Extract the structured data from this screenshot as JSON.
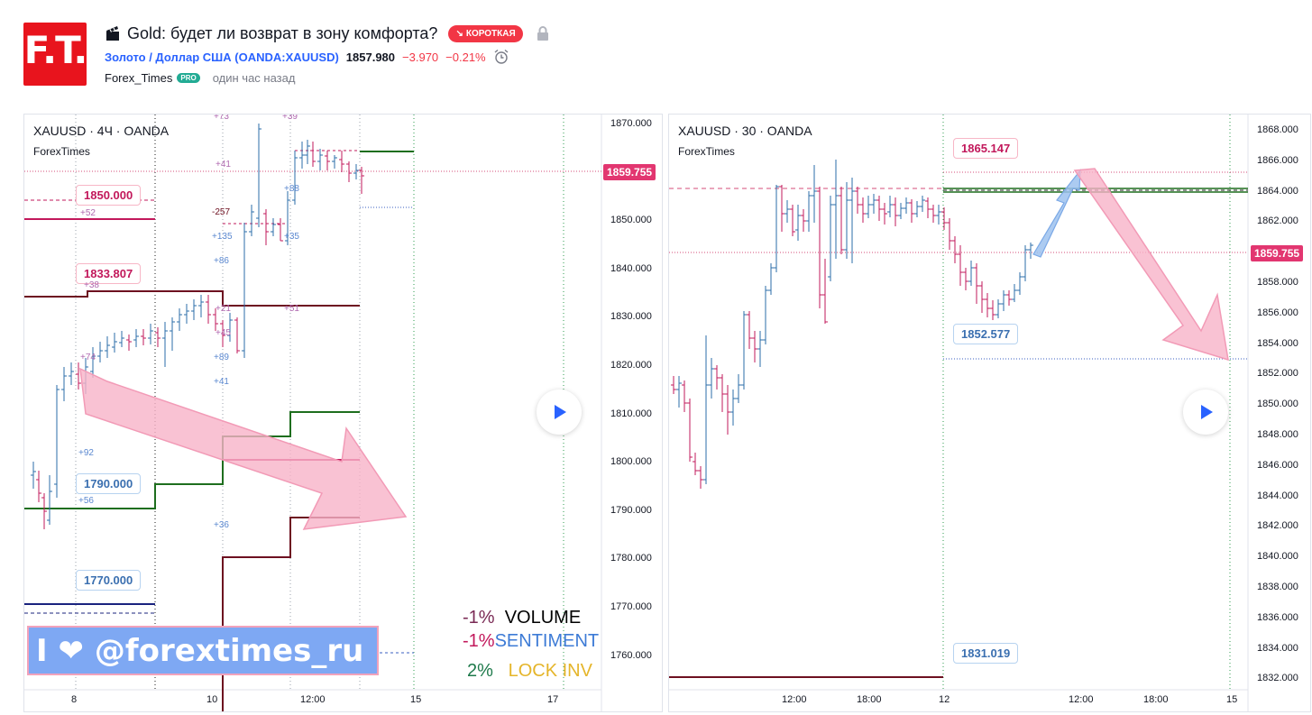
{
  "header": {
    "logo_text": "F.T.",
    "idea_title": "Gold: будет ли возврат в зону комфорта?",
    "direction_badge": "КОРОТКАЯ",
    "symbol_name": "Золото / Доллар США",
    "symbol_code": "(OANDA:XAUUSD)",
    "last_price": "1857.980",
    "change_abs": "−3.970",
    "change_pct": "−0.21%",
    "author": "Forex_Times",
    "author_badge": "PRO",
    "published": "один час назад"
  },
  "left_chart": {
    "title": "XAUUSD · 4Ч · OANDA",
    "subtitle": "ForexTimes",
    "price_axis": [
      "1870.000",
      "1860.000",
      "1850.000",
      "1840.000",
      "1830.000",
      "1820.000",
      "1810.000",
      "1800.000",
      "1790.000",
      "1780.000",
      "1770.000",
      "1760.000"
    ],
    "current_price_tag": "1859.755",
    "time_axis": [
      "8",
      "10",
      "12:00",
      "15",
      "17"
    ],
    "callouts": [
      "1850.000",
      "1833.807",
      "1790.000",
      "1770.000"
    ],
    "level_numbers": [
      "+73",
      "+39",
      "+41",
      "+88",
      "+52",
      "-257",
      "+135",
      "+35",
      "+86",
      "+38",
      "+21",
      "+51",
      "+45",
      "+74",
      "+89",
      "+41",
      "+92",
      "+56",
      "+36"
    ],
    "banner_text": "I ❤ @forextimes_ru",
    "legend": [
      {
        "pct": "-1%",
        "label": "VOLUME"
      },
      {
        "pct": "-1%",
        "label": "SENTIMENT"
      },
      {
        "pct": "2%",
        "label": "LOCK INV"
      }
    ]
  },
  "right_chart": {
    "title": "XAUUSD · 30 · OANDA",
    "subtitle": "ForexTimes",
    "price_axis": [
      "1868.000",
      "1866.000",
      "1864.000",
      "1862.000",
      "1860.000",
      "1858.000",
      "1856.000",
      "1854.000",
      "1852.000",
      "1850.000",
      "1848.000",
      "1846.000",
      "1844.000",
      "1842.000",
      "1840.000",
      "1838.000",
      "1836.000",
      "1834.000",
      "1832.000"
    ],
    "current_price_tag": "1859.755",
    "time_axis": [
      "12:00",
      "18:00",
      "12",
      "12:00",
      "18:00",
      "15"
    ],
    "callouts": [
      "1865.147",
      "1852.577",
      "1831.019"
    ]
  },
  "colors": {
    "accent": "#2962ff",
    "negative": "#f23645",
    "up_candle": "#2b6ea8",
    "down_candle": "#c2185b",
    "arrow_fill": "#f7b3c8",
    "arrow_up": "#9ec2ef",
    "volume": "#7a2a55",
    "sentiment": "#3d7bd6",
    "lock_inv": "#e5b52a",
    "lock_pct": "#1e7a4b"
  }
}
